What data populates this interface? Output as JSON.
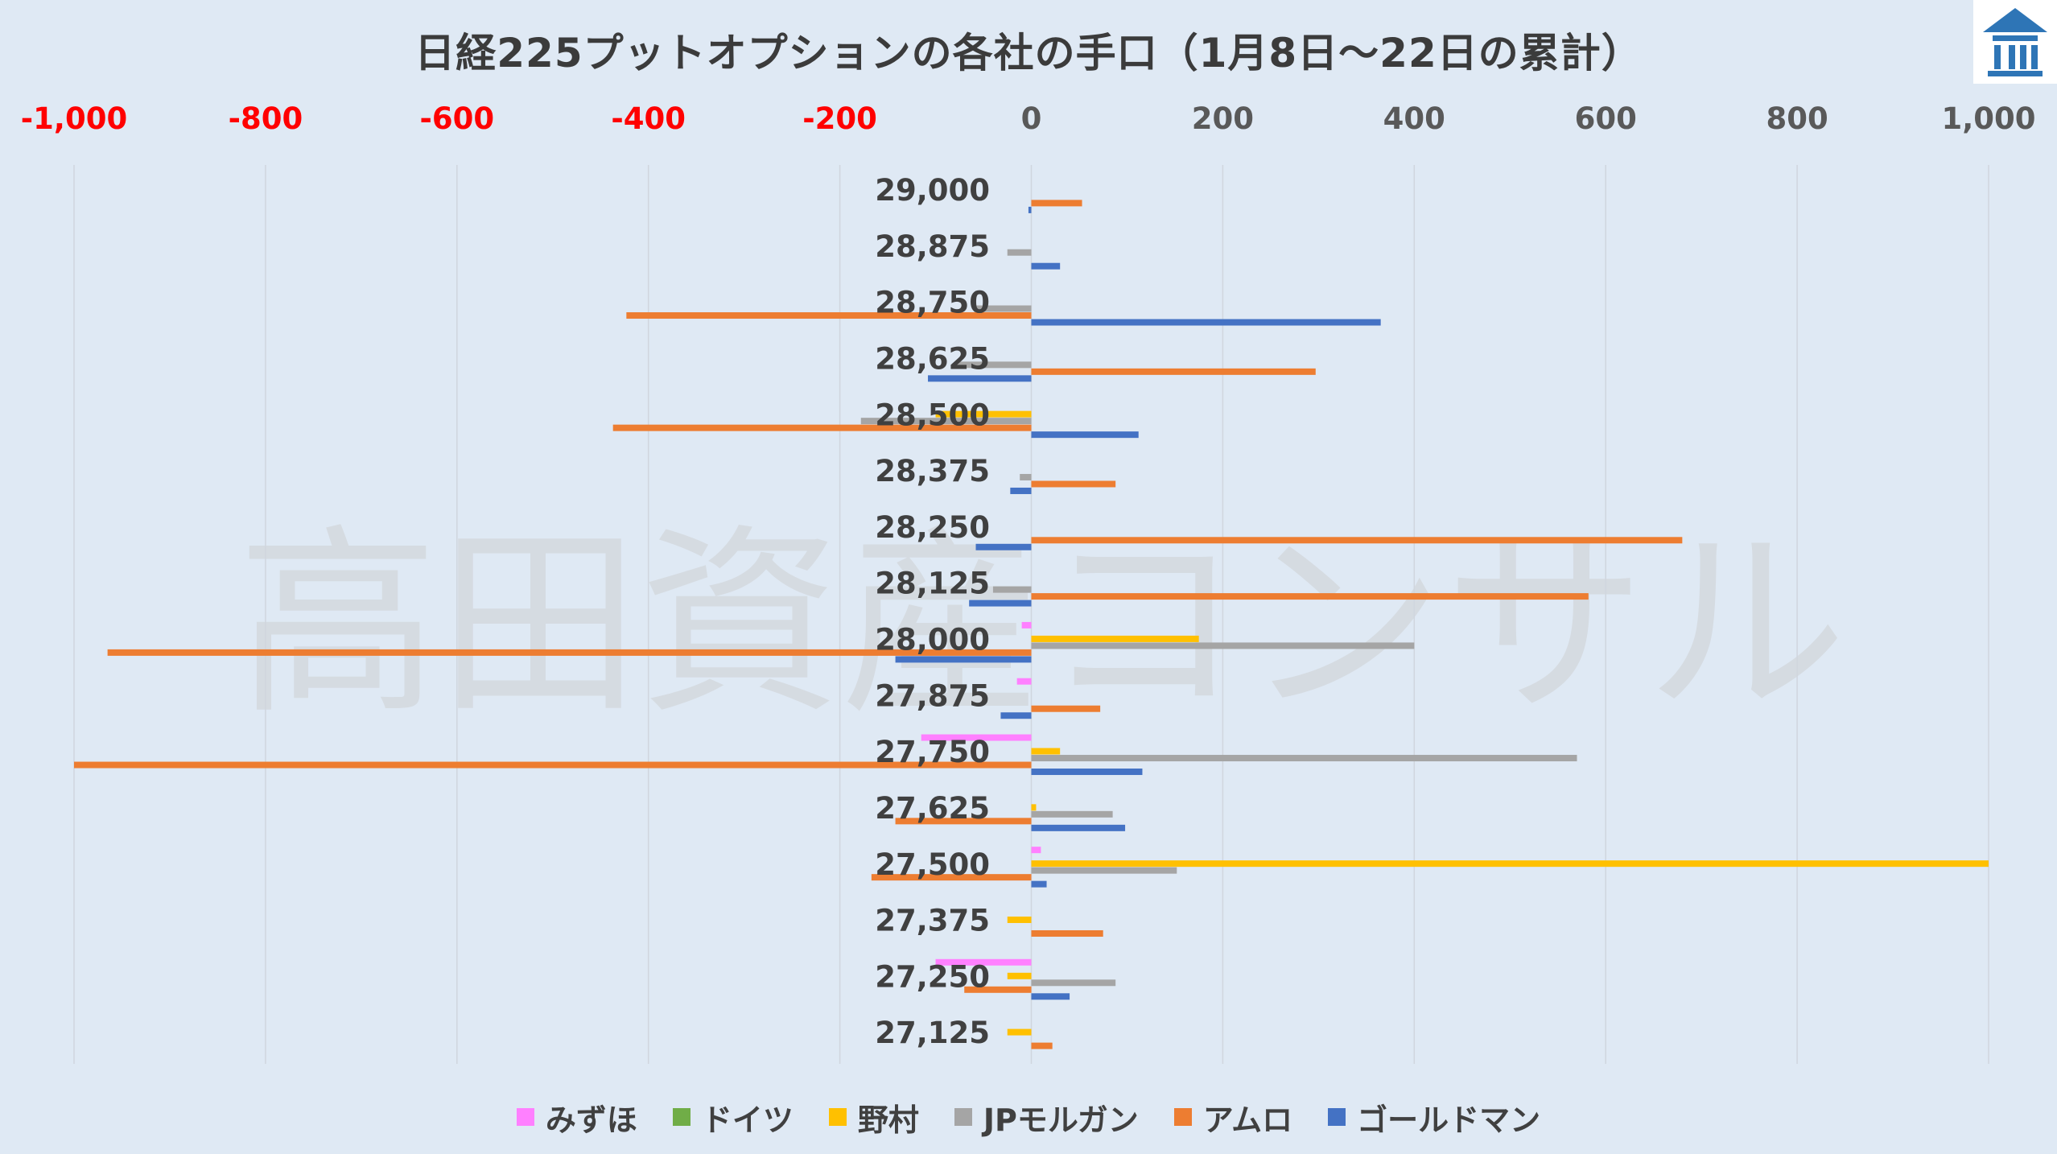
{
  "chart_data": {
    "type": "bar",
    "orientation": "horizontal",
    "title": "日経225プットオプションの各社の手口（1月8日～22日の累計）",
    "watermark": "高田資産コンサル",
    "xlim": [
      -1000,
      1000
    ],
    "x_ticks": [
      "-1,000",
      "-800",
      "-600",
      "-400",
      "-200",
      "0",
      "200",
      "400",
      "600",
      "800",
      "1,000"
    ],
    "x_tick_values": [
      -1000,
      -800,
      -600,
      -400,
      -200,
      0,
      200,
      400,
      600,
      800,
      1000
    ],
    "negative_tick_color": "#ff0000",
    "positive_tick_color": "#595959",
    "grid": true,
    "legend_position": "bottom",
    "categories": [
      "29,000",
      "28,875",
      "28,750",
      "28,625",
      "28,500",
      "28,375",
      "28,250",
      "28,125",
      "28,000",
      "27,875",
      "27,750",
      "27,625",
      "27,500",
      "27,375",
      "27,250",
      "27,125"
    ],
    "series": [
      {
        "name": "みずほ",
        "color": "#ff80ff",
        "values": [
          0,
          0,
          0,
          0,
          0,
          0,
          0,
          0,
          -10,
          -15,
          -115,
          0,
          10,
          0,
          -100,
          0
        ]
      },
      {
        "name": "ドイツ",
        "color": "#70ad47",
        "values": [
          0,
          0,
          0,
          0,
          0,
          0,
          0,
          0,
          0,
          0,
          0,
          0,
          0,
          0,
          0,
          0
        ]
      },
      {
        "name": "野村",
        "color": "#ffc000",
        "values": [
          0,
          0,
          0,
          0,
          -100,
          0,
          0,
          0,
          175,
          0,
          30,
          5,
          1000,
          -25,
          -25,
          -25
        ]
      },
      {
        "name": "JPモルガン",
        "color": "#a5a5a5",
        "values": [
          0,
          -25,
          -60,
          -80,
          -178,
          -12,
          0,
          -40,
          400,
          0,
          570,
          85,
          152,
          0,
          88,
          0
        ]
      },
      {
        "name": "アムロ",
        "color": "#ed7d31",
        "values": [
          53,
          0,
          -423,
          297,
          -437,
          88,
          680,
          582,
          -965,
          72,
          -1000,
          -142,
          -167,
          75,
          -70,
          22
        ]
      },
      {
        "name": "ゴールドマン",
        "color": "#4472c4",
        "values": [
          -3,
          30,
          365,
          -108,
          112,
          -22,
          -58,
          -65,
          -142,
          -32,
          116,
          98,
          16,
          0,
          40,
          0
        ]
      }
    ]
  },
  "legend": {
    "items": [
      {
        "label": "みずほ",
        "color": "#ff80ff"
      },
      {
        "label": "ドイツ",
        "color": "#70ad47"
      },
      {
        "label": "野村",
        "color": "#ffc000"
      },
      {
        "label": "JPモルガン",
        "color": "#a5a5a5"
      },
      {
        "label": "アムロ",
        "color": "#ed7d31"
      },
      {
        "label": "ゴールドマン",
        "color": "#4472c4"
      }
    ]
  },
  "logo": {
    "icon": "building-logo-icon",
    "color": "#2e75b6"
  }
}
